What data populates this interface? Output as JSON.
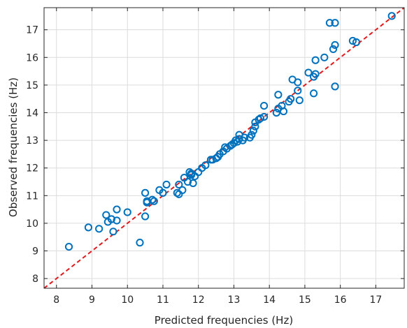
{
  "chart_data": {
    "type": "scatter",
    "title": "",
    "xlabel": "Predicted frequencies (Hz)",
    "ylabel": "Observed frequencies (Hz)",
    "xlim": [
      7.65,
      17.8
    ],
    "ylim": [
      7.65,
      17.8
    ],
    "xticks": [
      8,
      9,
      10,
      11,
      12,
      13,
      14,
      15,
      16,
      17
    ],
    "yticks": [
      8,
      9,
      10,
      11,
      12,
      13,
      14,
      15,
      16,
      17
    ],
    "grid": true,
    "legend": "none",
    "colors": {
      "points": "#0072BD",
      "reference_line": "#E31A1C",
      "grid": "#DCDCDC",
      "axes": "#262626"
    },
    "reference_line": {
      "style": "dashed",
      "from": [
        7.65,
        7.65
      ],
      "to": [
        17.8,
        17.8
      ]
    },
    "points": [
      [
        8.35,
        9.15
      ],
      [
        8.9,
        9.85
      ],
      [
        9.2,
        9.8
      ],
      [
        9.4,
        10.3
      ],
      [
        9.45,
        10.05
      ],
      [
        9.6,
        9.7
      ],
      [
        9.55,
        10.15
      ],
      [
        9.7,
        10.1
      ],
      [
        9.7,
        10.5
      ],
      [
        10.0,
        10.4
      ],
      [
        10.35,
        9.3
      ],
      [
        10.5,
        10.25
      ],
      [
        10.5,
        11.1
      ],
      [
        10.55,
        10.8
      ],
      [
        10.55,
        10.75
      ],
      [
        10.7,
        10.85
      ],
      [
        10.75,
        10.8
      ],
      [
        10.9,
        11.2
      ],
      [
        11.0,
        11.1
      ],
      [
        11.1,
        11.4
      ],
      [
        11.4,
        11.1
      ],
      [
        11.45,
        11.4
      ],
      [
        11.45,
        11.05
      ],
      [
        11.55,
        11.2
      ],
      [
        11.6,
        11.65
      ],
      [
        11.7,
        11.5
      ],
      [
        11.75,
        11.85
      ],
      [
        11.8,
        11.8
      ],
      [
        11.8,
        11.75
      ],
      [
        11.85,
        11.45
      ],
      [
        11.9,
        11.7
      ],
      [
        12.0,
        11.85
      ],
      [
        12.1,
        12.0
      ],
      [
        12.2,
        12.1
      ],
      [
        12.35,
        12.3
      ],
      [
        12.4,
        12.3
      ],
      [
        12.5,
        12.35
      ],
      [
        12.55,
        12.4
      ],
      [
        12.6,
        12.5
      ],
      [
        12.7,
        12.6
      ],
      [
        12.75,
        12.75
      ],
      [
        12.8,
        12.7
      ],
      [
        12.9,
        12.8
      ],
      [
        12.95,
        12.85
      ],
      [
        13.0,
        12.9
      ],
      [
        13.05,
        13.0
      ],
      [
        13.1,
        12.95
      ],
      [
        13.15,
        13.05
      ],
      [
        13.15,
        13.2
      ],
      [
        13.25,
        13.0
      ],
      [
        13.3,
        13.1
      ],
      [
        13.45,
        13.1
      ],
      [
        13.5,
        13.2
      ],
      [
        13.55,
        13.35
      ],
      [
        13.6,
        13.5
      ],
      [
        13.6,
        13.65
      ],
      [
        13.7,
        13.75
      ],
      [
        13.75,
        13.8
      ],
      [
        13.85,
        13.85
      ],
      [
        13.85,
        14.25
      ],
      [
        14.2,
        14.0
      ],
      [
        14.25,
        14.15
      ],
      [
        14.25,
        14.65
      ],
      [
        14.35,
        14.25
      ],
      [
        14.4,
        14.05
      ],
      [
        14.55,
        14.4
      ],
      [
        14.6,
        14.5
      ],
      [
        14.65,
        15.2
      ],
      [
        14.8,
        15.1
      ],
      [
        14.8,
        14.8
      ],
      [
        14.85,
        14.45
      ],
      [
        15.1,
        15.45
      ],
      [
        15.25,
        15.3
      ],
      [
        15.25,
        14.7
      ],
      [
        15.3,
        15.4
      ],
      [
        15.3,
        15.9
      ],
      [
        15.55,
        16.0
      ],
      [
        15.7,
        17.25
      ],
      [
        15.8,
        16.3
      ],
      [
        15.85,
        16.45
      ],
      [
        15.85,
        14.95
      ],
      [
        15.85,
        17.25
      ],
      [
        16.35,
        16.6
      ],
      [
        16.45,
        16.55
      ],
      [
        17.45,
        17.5
      ]
    ]
  }
}
